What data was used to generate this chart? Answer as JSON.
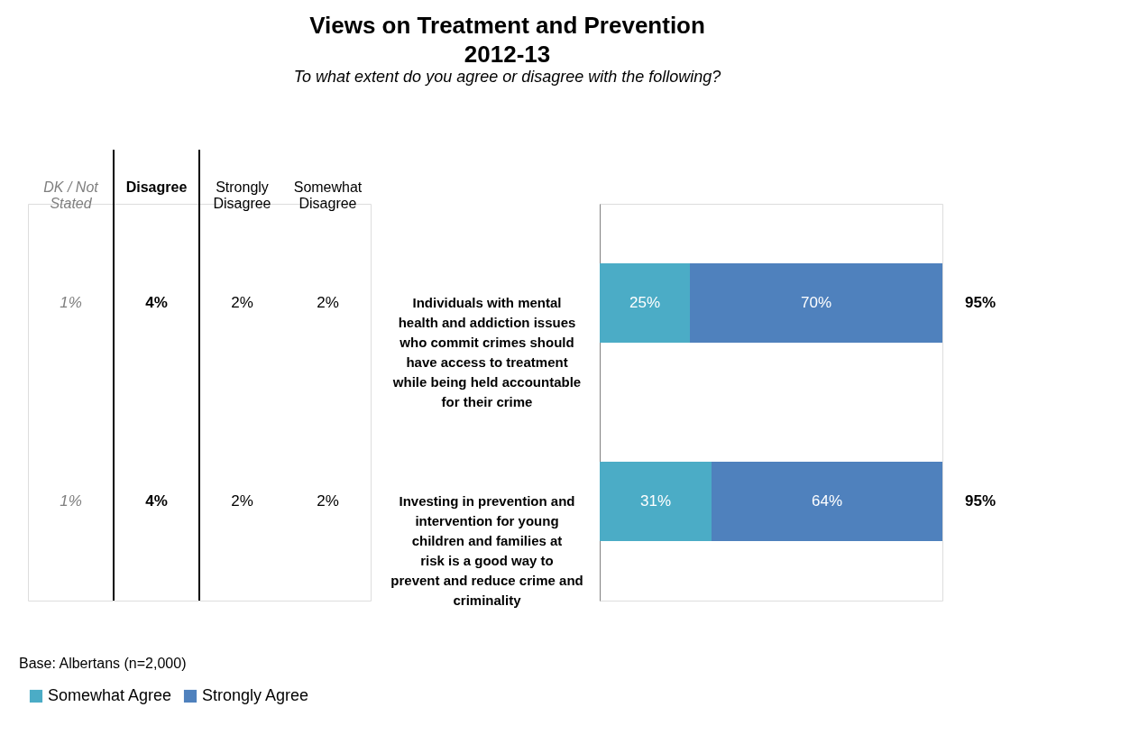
{
  "chart_data": [
    {
      "type": "other",
      "categories": [
        "DK / Not Stated",
        "Disagree",
        "Strongly Disagree",
        "Somewhat Disagree"
      ],
      "series": [
        {
          "values": [
            1,
            4,
            2,
            2
          ],
          "value_labels": [
            "1%",
            "4%",
            "2%",
            "2%"
          ]
        },
        {
          "values": [
            1,
            4,
            2,
            2
          ],
          "value_labels": [
            "1%",
            "4%",
            "2%",
            "2%"
          ]
        }
      ]
    },
    {
      "type": "bar",
      "orientation": "horizontal",
      "stacked": true,
      "title": "Views on Treatment and Prevention\n2012-13",
      "subtitle": "To what extent do you agree or disagree with the following?",
      "annotations": [
        "Base: Albertans (n=2,000)"
      ],
      "categories": [
        "Individuals with mental health and addiction issues who commit crimes should have access to treatment while being held accountable for their crime",
        "Investing in prevention and intervention for young children and families at risk is a good way to prevent and reduce crime and criminality"
      ],
      "series": [
        {
          "name": "Somewhat Agree",
          "color": "#4bacc6",
          "values": [
            25,
            31
          ],
          "value_labels": [
            "25%",
            "31%"
          ]
        },
        {
          "name": "Strongly Agree",
          "color": "#4f81bd",
          "values": [
            70,
            64
          ],
          "value_labels": [
            "70%",
            "64%"
          ]
        }
      ],
      "totals": [
        "95%",
        "95%"
      ],
      "tick_labels": "y",
      "legend": "bottom"
    }
  ]
}
